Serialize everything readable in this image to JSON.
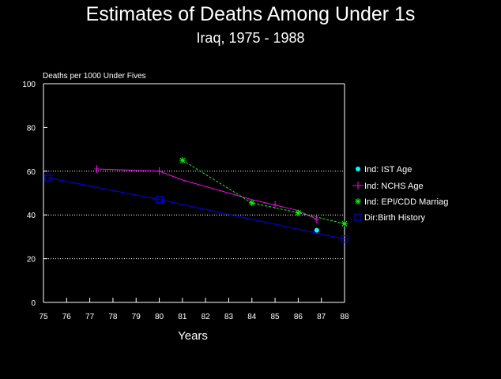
{
  "chart_data": {
    "type": "line",
    "title": "Estimates of Deaths Among Under 1s",
    "subtitle": "Iraq, 1975 - 1988",
    "ylabel": "Deaths per 1000 Under Fives",
    "xlabel": "Years",
    "xlim": [
      75,
      88
    ],
    "ylim": [
      0,
      100
    ],
    "x_ticks": [
      "75",
      "76",
      "77",
      "78",
      "79",
      "80",
      "81",
      "82",
      "83",
      "84",
      "85",
      "86",
      "87",
      "88"
    ],
    "y_ticks": [
      "0",
      "20",
      "40",
      "60",
      "80",
      "100"
    ],
    "gridlines_y": [
      20,
      40,
      60
    ],
    "legend_position": "right",
    "colors": {
      "background": "#000000",
      "axis": "#ffffff",
      "series_ist": "#00ffff",
      "series_nchs": "#ff00ff",
      "series_epi": "#00ff00",
      "series_birth": "#0000ff"
    },
    "series": [
      {
        "name": "Ind: IST Age",
        "marker": "dot",
        "points": [
          [
            86.8,
            33
          ]
        ]
      },
      {
        "name": "Ind: NCHS Age",
        "marker": "plus",
        "points": [
          [
            77.3,
            61
          ],
          [
            78.7,
            60.5
          ],
          [
            80,
            60
          ],
          [
            81,
            56
          ],
          [
            82,
            53
          ],
          [
            83,
            50
          ],
          [
            84,
            47
          ],
          [
            85,
            44.5
          ],
          [
            86,
            42
          ],
          [
            86.8,
            38
          ]
        ]
      },
      {
        "name": "Ind: EPI/CDD Marriag",
        "marker": "star",
        "points": [
          [
            81,
            65
          ],
          [
            84,
            45.5
          ],
          [
            86,
            41
          ],
          [
            88,
            36
          ]
        ]
      },
      {
        "name": "Dir:Birth History",
        "marker": "square",
        "points": [
          [
            75.2,
            57
          ],
          [
            80,
            47
          ],
          [
            88,
            29
          ]
        ]
      }
    ]
  }
}
